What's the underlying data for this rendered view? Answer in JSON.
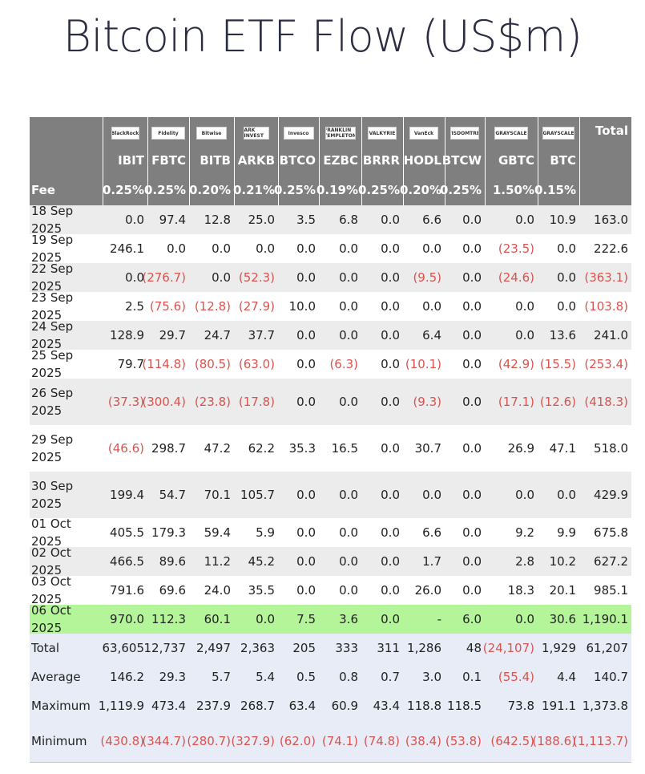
{
  "title": "Bitcoin ETF Flow (US$m)",
  "logos": [
    {
      "name": "blackrock-logo",
      "text": "BlackRock"
    },
    {
      "name": "fidelity-logo",
      "text": "Fidelity"
    },
    {
      "name": "bitwise-logo",
      "text": "Bitwise"
    },
    {
      "name": "ark-invest-logo",
      "text": "ARK INVEST"
    },
    {
      "name": "invesco-logo",
      "text": "Invesco"
    },
    {
      "name": "franklin-templeton-logo",
      "text": "FRANKLIN TEMPLETON"
    },
    {
      "name": "valkyrie-logo",
      "text": "VALKYRIE"
    },
    {
      "name": "vaneck-logo",
      "text": "VanEck"
    },
    {
      "name": "wisdomtree-logo",
      "text": "WISDOMTREE"
    },
    {
      "name": "grayscale-logo",
      "text": "GRAYSCALE"
    },
    {
      "name": "grayscale-mini-logo",
      "text": "GRAYSCALE"
    }
  ],
  "total_header": "Total",
  "tickers": [
    "IBIT",
    "FBTC",
    "BITB",
    "ARKB",
    "BTCO",
    "EZBC",
    "BRRR",
    "HODL",
    "BTCW",
    "GBTC",
    "BTC"
  ],
  "fee_label": "Fee",
  "fees": [
    "0.25%",
    "0.25%",
    "0.20%",
    "0.21%",
    "0.25%",
    "0.19%",
    "0.25%",
    "0.20%",
    "0.25%",
    "1.50%",
    "0.15%"
  ],
  "rows": [
    {
      "date": "18 Sep 2025",
      "values": [
        "0.0",
        "97.4",
        "12.8",
        "25.0",
        "3.5",
        "6.8",
        "0.0",
        "6.6",
        "0.0",
        "0.0",
        "10.9",
        "163.0"
      ]
    },
    {
      "date": "19 Sep 2025",
      "values": [
        "246.1",
        "0.0",
        "0.0",
        "0.0",
        "0.0",
        "0.0",
        "0.0",
        "0.0",
        "0.0",
        "(23.5)",
        "0.0",
        "222.6"
      ]
    },
    {
      "date": "22 Sep 2025",
      "values": [
        "0.0",
        "(276.7)",
        "0.0",
        "(52.3)",
        "0.0",
        "0.0",
        "0.0",
        "(9.5)",
        "0.0",
        "(24.6)",
        "0.0",
        "(363.1)"
      ]
    },
    {
      "date": "23 Sep 2025",
      "values": [
        "2.5",
        "(75.6)",
        "(12.8)",
        "(27.9)",
        "10.0",
        "0.0",
        "0.0",
        "0.0",
        "0.0",
        "0.0",
        "0.0",
        "(103.8)"
      ]
    },
    {
      "date": "24 Sep 2025",
      "values": [
        "128.9",
        "29.7",
        "24.7",
        "37.7",
        "0.0",
        "0.0",
        "0.0",
        "6.4",
        "0.0",
        "0.0",
        "13.6",
        "241.0"
      ]
    },
    {
      "date": "25 Sep 2025",
      "values": [
        "79.7",
        "(114.8)",
        "(80.5)",
        "(63.0)",
        "0.0",
        "(6.3)",
        "0.0",
        "(10.1)",
        "0.0",
        "(42.9)",
        "(15.5)",
        "(253.4)"
      ]
    },
    {
      "date": "26 Sep 2025",
      "values": [
        "(37.3)",
        "(300.4)",
        "(23.8)",
        "(17.8)",
        "0.0",
        "0.0",
        "0.0",
        "(9.3)",
        "0.0",
        "(17.1)",
        "(12.6)",
        "(418.3)"
      ]
    },
    {
      "date": "29 Sep 2025",
      "values": [
        "(46.6)",
        "298.7",
        "47.2",
        "62.2",
        "35.3",
        "16.5",
        "0.0",
        "30.7",
        "0.0",
        "26.9",
        "47.1",
        "518.0"
      ]
    },
    {
      "date": "30 Sep 2025",
      "values": [
        "199.4",
        "54.7",
        "70.1",
        "105.7",
        "0.0",
        "0.0",
        "0.0",
        "0.0",
        "0.0",
        "0.0",
        "0.0",
        "429.9"
      ]
    },
    {
      "date": "01 Oct 2025",
      "values": [
        "405.5",
        "179.3",
        "59.4",
        "5.9",
        "0.0",
        "0.0",
        "0.0",
        "6.6",
        "0.0",
        "9.2",
        "9.9",
        "675.8"
      ]
    },
    {
      "date": "02 Oct 2025",
      "values": [
        "466.5",
        "89.6",
        "11.2",
        "45.2",
        "0.0",
        "0.0",
        "0.0",
        "1.7",
        "0.0",
        "2.8",
        "10.2",
        "627.2"
      ]
    },
    {
      "date": "03 Oct 2025",
      "values": [
        "791.6",
        "69.6",
        "24.0",
        "35.5",
        "0.0",
        "0.0",
        "0.0",
        "26.0",
        "0.0",
        "18.3",
        "20.1",
        "985.1"
      ]
    },
    {
      "date": "06 Oct 2025",
      "values": [
        "970.0",
        "112.3",
        "60.1",
        "0.0",
        "7.5",
        "3.6",
        "0.0",
        "-",
        "6.0",
        "0.0",
        "30.6",
        "1,190.1"
      ]
    }
  ],
  "summary": [
    {
      "label": "Total",
      "values": [
        "63,605",
        "12,737",
        "2,497",
        "2,363",
        "205",
        "333",
        "311",
        "1,286",
        "48",
        "(24,107)",
        "1,929",
        "61,207"
      ]
    },
    {
      "label": "Average",
      "values": [
        "146.2",
        "29.3",
        "5.7",
        "5.4",
        "0.5",
        "0.8",
        "0.7",
        "3.0",
        "0.1",
        "(55.4)",
        "4.4",
        "140.7"
      ]
    },
    {
      "label": "Maximum",
      "values": [
        "1,119.9",
        "473.4",
        "237.9",
        "268.7",
        "63.4",
        "60.9",
        "43.4",
        "118.8",
        "118.5",
        "73.8",
        "191.1",
        "1,373.8"
      ]
    },
    {
      "label": "Minimum",
      "values": [
        "(430.8)",
        "(344.7)",
        "(280.7)",
        "(327.9)",
        "(62.0)",
        "(74.1)",
        "(74.8)",
        "(38.4)",
        "(53.8)",
        "(642.5)",
        "(188.6)",
        "(1,113.7)"
      ]
    }
  ],
  "colors": {
    "header_bg": "#7f7f7f",
    "negative": "#d9534f",
    "highlight": "#b4f59a",
    "summary_bg": "#e8ecf6",
    "stripe": "#ececec"
  }
}
